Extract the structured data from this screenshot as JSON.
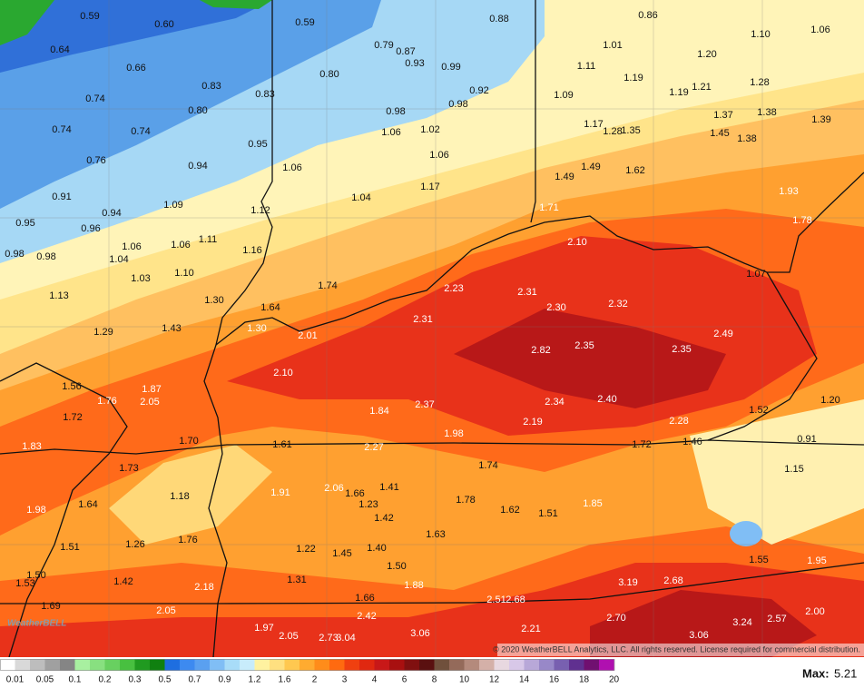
{
  "map": {
    "labels": [
      "0.59",
      "0.60",
      "0.59",
      "0.88",
      "0.86",
      "0.64",
      "0.66",
      "0.79",
      "0.87",
      "0.93",
      "0.99",
      "0.80",
      "1.01",
      "1.10",
      "1.06",
      "1.11",
      "1.20",
      "1.19",
      "1.28",
      "0.74",
      "0.83",
      "0.83",
      "0.92",
      "0.98",
      "1.09",
      "1.19",
      "1.21",
      "0.80",
      "0.98",
      "1.37",
      "1.38",
      "1.39",
      "0.74",
      "0.74",
      "1.06",
      "1.02",
      "1.17",
      "1.28",
      "1.35",
      "1.45",
      "1.38",
      "0.95",
      "1.06",
      "0.76",
      "0.94",
      "1.06",
      "1.49",
      "1.62",
      "1.49",
      "1.17",
      "1.04",
      "0.91",
      "1.09",
      "1.93",
      "1.12",
      "1.71",
      "0.94",
      "0.95",
      "0.96",
      "1.78",
      "1.11",
      "1.06",
      "1.06",
      "2.10",
      "1.16",
      "0.98",
      "0.98",
      "1.04",
      "1.10",
      "1.07",
      "1.03",
      "1.74",
      "2.23",
      "2.31",
      "1.13",
      "1.30",
      "1.64",
      "2.30",
      "2.32",
      "2.31",
      "1.30",
      "1.43",
      "1.29",
      "2.01",
      "2.49",
      "2.82",
      "2.35",
      "2.35",
      "2.10",
      "1.56",
      "1.87",
      "1.76",
      "2.05",
      "2.40",
      "2.34",
      "2.37",
      "1.52",
      "1.20",
      "1.84",
      "1.72",
      "2.28",
      "2.19",
      "1.98",
      "1.70",
      "1.61",
      "2.27",
      "1.72",
      "1.46",
      "0.91",
      "1.83",
      "1.73",
      "1.74",
      "1.15",
      "1.41",
      "2.06",
      "1.91",
      "1.66",
      "1.18",
      "1.78",
      "1.85",
      "1.23",
      "1.98",
      "1.64",
      "1.62",
      "1.51",
      "1.42",
      "1.63",
      "1.76",
      "1.26",
      "1.51",
      "1.22",
      "1.40",
      "1.45",
      "1.50",
      "1.55",
      "1.95",
      "1.50",
      "1.31",
      "1.42",
      "3.19",
      "2.68",
      "1.53",
      "2.18",
      "1.88",
      "1.66",
      "2.51",
      "2.68",
      "1.69",
      "2.05",
      "2.00",
      "2.42",
      "2.70",
      "3.24",
      "2.57",
      "1.97",
      "2.21",
      "3.06",
      "3.06",
      "2.05",
      "2.73",
      "3.04"
    ],
    "copyright": "© 2020 WeatherBELL Analytics, LLC. All rights reserved. License required for commercial distribution.",
    "logo": "WeatherBELL"
  },
  "legend": {
    "labels": [
      "0.01",
      "0.05",
      "0.1",
      "0.2",
      "0.3",
      "0.5",
      "0.7",
      "0.9",
      "1.2",
      "1.6",
      "2",
      "3",
      "4",
      "6",
      "8",
      "10",
      "12",
      "14",
      "16",
      "18",
      "20"
    ],
    "colors": [
      "#ffffff",
      "#d9d9d9",
      "#bdbdbd",
      "#a0a0a0",
      "#858585",
      "#a8f0a0",
      "#88e080",
      "#68d060",
      "#48c040",
      "#209a20",
      "#108010",
      "#1e6ee0",
      "#3d8af0",
      "#5aa0f0",
      "#80bef5",
      "#a8dcf8",
      "#c8ecfb",
      "#fff2a0",
      "#ffe080",
      "#ffc850",
      "#ffab30",
      "#ff8c1a",
      "#ff6a10",
      "#f04010",
      "#e02810",
      "#c81818",
      "#a81010",
      "#801010",
      "#5a1010",
      "#70503c",
      "#946a5a",
      "#b48a7c",
      "#d4b0a8",
      "#e8d8e0",
      "#d8c8e8",
      "#b8a8d8",
      "#9888c8",
      "#7860b0",
      "#603090",
      "#701070",
      "#b010b0"
    ]
  },
  "max": {
    "label": "Max:",
    "value": "5.21"
  }
}
